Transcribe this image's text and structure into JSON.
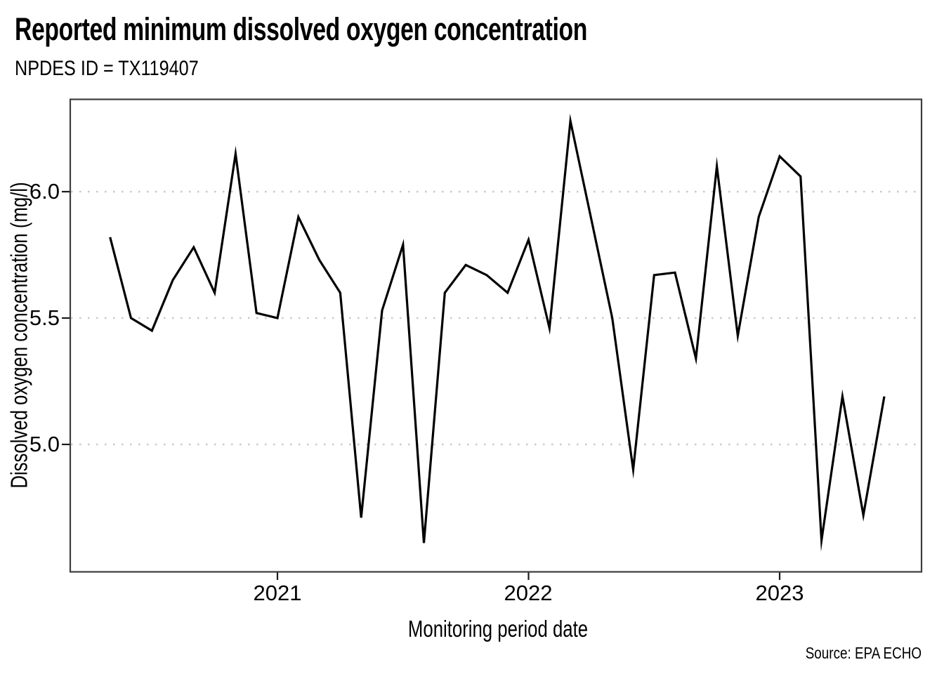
{
  "chart_data": {
    "type": "line",
    "title": "Reported minimum dissolved oxygen concentration",
    "subtitle": "NPDES ID = TX119407",
    "xlabel": "Monitoring period date",
    "ylabel": "Dissolved oxygen concentration (mg/l)",
    "source": "Source: EPA ECHO",
    "series_name": "Reported minimum dissolved oxygen concentration",
    "x": [
      "2020-05",
      "2020-06",
      "2020-07",
      "2020-08",
      "2020-09",
      "2020-10",
      "2020-11",
      "2020-12",
      "2021-01",
      "2021-02",
      "2021-03",
      "2021-04",
      "2021-05",
      "2021-06",
      "2021-07",
      "2021-08",
      "2021-09",
      "2021-10",
      "2021-11",
      "2021-12",
      "2022-01",
      "2022-02",
      "2022-03",
      "2022-04",
      "2022-05",
      "2022-06",
      "2022-07",
      "2022-08",
      "2022-09",
      "2022-10",
      "2022-11",
      "2022-12",
      "2023-01",
      "2023-02",
      "2023-03",
      "2023-04",
      "2023-05",
      "2023-06"
    ],
    "values": [
      5.82,
      5.5,
      5.45,
      5.65,
      5.78,
      5.6,
      6.15,
      5.52,
      5.5,
      5.9,
      5.73,
      5.6,
      4.71,
      5.53,
      5.79,
      4.61,
      5.6,
      5.71,
      5.67,
      5.6,
      5.81,
      5.46,
      6.28,
      5.89,
      5.5,
      4.9,
      5.67,
      5.68,
      5.34,
      6.1,
      5.43,
      5.9,
      6.14,
      6.06,
      4.62,
      5.19,
      4.72,
      5.19
    ],
    "x_ticks": [
      "2021",
      "2022",
      "2023"
    ],
    "y_ticks": [
      "6.0",
      "5.5",
      "5.0"
    ],
    "y_tick_values": [
      6.0,
      5.5,
      5.0
    ],
    "ylim": [
      4.5,
      6.37
    ],
    "grid": "horizontal-dotted",
    "legend": "none",
    "line_color": "#000000",
    "grid_color": "#c9c9c9",
    "border_color": "#3d3d3d"
  }
}
